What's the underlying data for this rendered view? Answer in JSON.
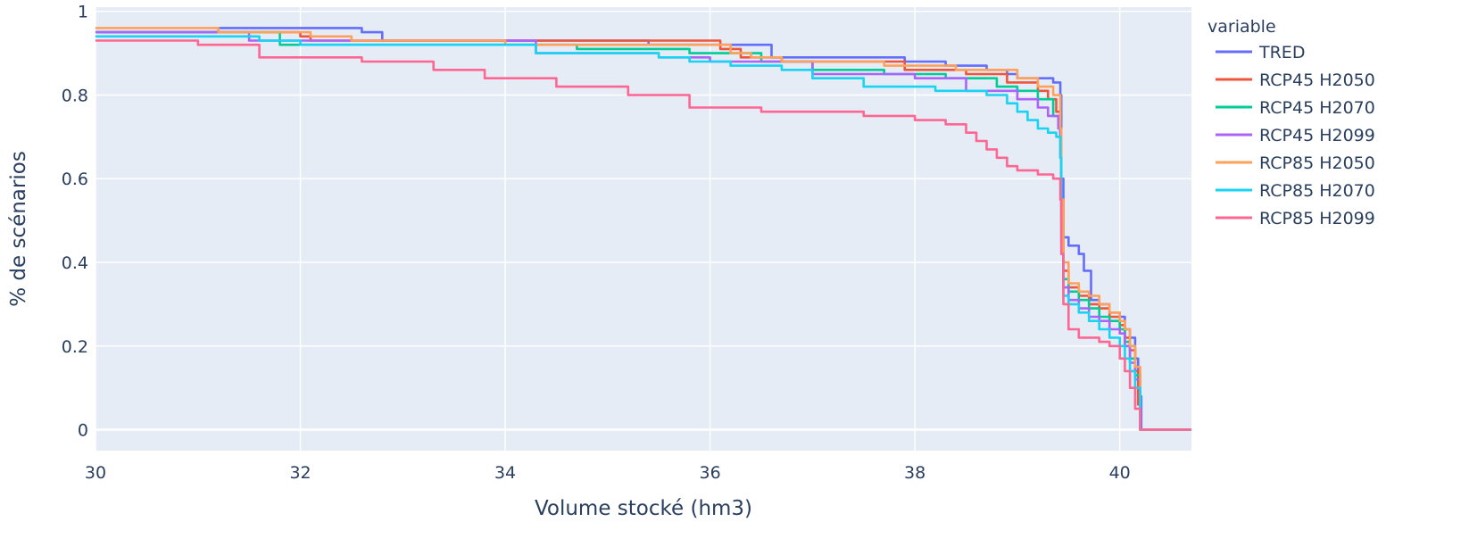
{
  "chart_data": {
    "type": "line",
    "title": "",
    "xlabel": "Volume stocké (hm3)",
    "ylabel": "% de scénarios",
    "xlim": [
      30,
      40.7
    ],
    "ylim": [
      -0.05,
      1.01
    ],
    "grid": true,
    "legend_title": "variable",
    "legend_position": "right",
    "xticks": [
      30,
      32,
      34,
      36,
      38,
      40
    ],
    "xtick_labels": [
      "30",
      "32",
      "34",
      "36",
      "38",
      "40"
    ],
    "yticks": [
      0,
      0.2,
      0.4,
      0.6,
      0.8,
      1
    ],
    "ytick_labels": [
      "0",
      "0.2",
      "0.4",
      "0.6",
      "0.8",
      "1"
    ],
    "series": [
      {
        "name": "TRED",
        "color": "#636efa",
        "x": [
          30,
          31.2,
          32.6,
          32.8,
          35.4,
          36.1,
          36.6,
          37.9,
          38.3,
          38.7,
          38.9,
          39.0,
          39.1,
          39.35,
          39.42,
          39.43,
          39.45,
          39.5,
          39.6,
          39.65,
          39.72,
          39.8,
          39.9,
          40.0,
          40.05,
          40.1,
          40.15,
          40.18,
          40.2,
          40.21,
          40.7
        ],
        "y": [
          0.95,
          0.96,
          0.95,
          0.93,
          0.92,
          0.92,
          0.89,
          0.88,
          0.87,
          0.86,
          0.85,
          0.84,
          0.84,
          0.83,
          0.8,
          0.6,
          0.46,
          0.44,
          0.42,
          0.38,
          0.31,
          0.3,
          0.28,
          0.27,
          0.24,
          0.22,
          0.17,
          0.12,
          0.08,
          0.0,
          0.0
        ]
      },
      {
        "name": "RCP45 H2050",
        "color": "#ef553b",
        "x": [
          30,
          32.0,
          32.1,
          36.1,
          36.3,
          36.7,
          37.9,
          38.5,
          38.9,
          39.2,
          39.3,
          39.38,
          39.42,
          39.43,
          39.45,
          39.5,
          39.6,
          39.7,
          39.8,
          39.9,
          40.0,
          40.05,
          40.1,
          40.15,
          40.18,
          40.2,
          40.7
        ],
        "y": [
          0.95,
          0.94,
          0.93,
          0.91,
          0.89,
          0.88,
          0.86,
          0.85,
          0.83,
          0.81,
          0.79,
          0.76,
          0.7,
          0.55,
          0.38,
          0.34,
          0.32,
          0.3,
          0.29,
          0.27,
          0.25,
          0.22,
          0.19,
          0.14,
          0.06,
          0.0,
          0.0
        ]
      },
      {
        "name": "RCP45 H2070",
        "color": "#00cc96",
        "x": [
          30,
          31.8,
          34.7,
          35.8,
          36.5,
          37.0,
          37.7,
          38.3,
          38.8,
          39.0,
          39.2,
          39.35,
          39.42,
          39.43,
          39.45,
          39.5,
          39.6,
          39.7,
          39.8,
          39.9,
          40.0,
          40.05,
          40.1,
          40.15,
          40.2,
          40.7
        ],
        "y": [
          0.95,
          0.92,
          0.91,
          0.9,
          0.88,
          0.86,
          0.85,
          0.84,
          0.82,
          0.81,
          0.79,
          0.75,
          0.7,
          0.5,
          0.36,
          0.33,
          0.31,
          0.29,
          0.27,
          0.26,
          0.24,
          0.21,
          0.17,
          0.13,
          0.0,
          0.0
        ]
      },
      {
        "name": "RCP45 H2099",
        "color": "#ab63fa",
        "x": [
          30,
          31.5,
          34.3,
          35.5,
          36.0,
          37.0,
          38.0,
          38.5,
          39.0,
          39.2,
          39.3,
          39.4,
          39.42,
          39.43,
          39.45,
          39.5,
          39.6,
          39.7,
          39.8,
          39.9,
          40.0,
          40.05,
          40.1,
          40.15,
          40.2,
          40.7
        ],
        "y": [
          0.95,
          0.93,
          0.9,
          0.89,
          0.88,
          0.85,
          0.84,
          0.81,
          0.79,
          0.77,
          0.75,
          0.72,
          0.65,
          0.45,
          0.34,
          0.31,
          0.29,
          0.27,
          0.26,
          0.24,
          0.23,
          0.2,
          0.16,
          0.12,
          0.0,
          0.0
        ]
      },
      {
        "name": "RCP85 H2050",
        "color": "#ffa15a",
        "x": [
          30,
          31.2,
          32.1,
          32.5,
          34.0,
          35.0,
          36.2,
          36.4,
          36.7,
          37.7,
          38.4,
          39.0,
          39.2,
          39.35,
          39.42,
          39.43,
          39.45,
          39.5,
          39.6,
          39.7,
          39.8,
          39.9,
          40.0,
          40.05,
          40.1,
          40.15,
          40.2,
          40.7
        ],
        "y": [
          0.96,
          0.95,
          0.94,
          0.93,
          0.92,
          0.92,
          0.9,
          0.89,
          0.88,
          0.87,
          0.86,
          0.84,
          0.82,
          0.8,
          0.72,
          0.55,
          0.4,
          0.35,
          0.33,
          0.32,
          0.3,
          0.28,
          0.26,
          0.24,
          0.2,
          0.15,
          0.0,
          0.0
        ]
      },
      {
        "name": "RCP85 H2070",
        "color": "#19d3f3",
        "x": [
          30,
          31.6,
          32.0,
          34.3,
          35.5,
          35.8,
          36.2,
          36.7,
          37.0,
          37.5,
          38.2,
          38.7,
          38.9,
          39.0,
          39.1,
          39.2,
          39.3,
          39.38,
          39.42,
          39.43,
          39.45,
          39.5,
          39.6,
          39.7,
          39.8,
          39.9,
          40.0,
          40.05,
          40.1,
          40.15,
          40.2,
          40.7
        ],
        "y": [
          0.94,
          0.93,
          0.92,
          0.9,
          0.89,
          0.88,
          0.87,
          0.86,
          0.84,
          0.82,
          0.81,
          0.8,
          0.78,
          0.76,
          0.74,
          0.72,
          0.71,
          0.7,
          0.65,
          0.42,
          0.32,
          0.3,
          0.28,
          0.26,
          0.24,
          0.22,
          0.2,
          0.17,
          0.14,
          0.1,
          0.0,
          0.0
        ]
      },
      {
        "name": "RCP85 H2099",
        "color": "#ff6692",
        "x": [
          30,
          31.0,
          31.6,
          32.6,
          33.3,
          33.8,
          34.5,
          35.2,
          35.8,
          36.5,
          37.5,
          38.0,
          38.3,
          38.5,
          38.6,
          38.7,
          38.8,
          38.9,
          39.0,
          39.2,
          39.35,
          39.42,
          39.43,
          39.45,
          39.5,
          39.6,
          39.7,
          39.8,
          39.9,
          40.0,
          40.05,
          40.1,
          40.15,
          40.2,
          40.7
        ],
        "y": [
          0.93,
          0.92,
          0.89,
          0.88,
          0.86,
          0.84,
          0.82,
          0.8,
          0.77,
          0.76,
          0.75,
          0.74,
          0.73,
          0.71,
          0.69,
          0.67,
          0.65,
          0.63,
          0.62,
          0.61,
          0.6,
          0.55,
          0.42,
          0.3,
          0.24,
          0.22,
          0.22,
          0.21,
          0.2,
          0.17,
          0.14,
          0.1,
          0.05,
          0.0,
          0.0
        ]
      }
    ]
  }
}
